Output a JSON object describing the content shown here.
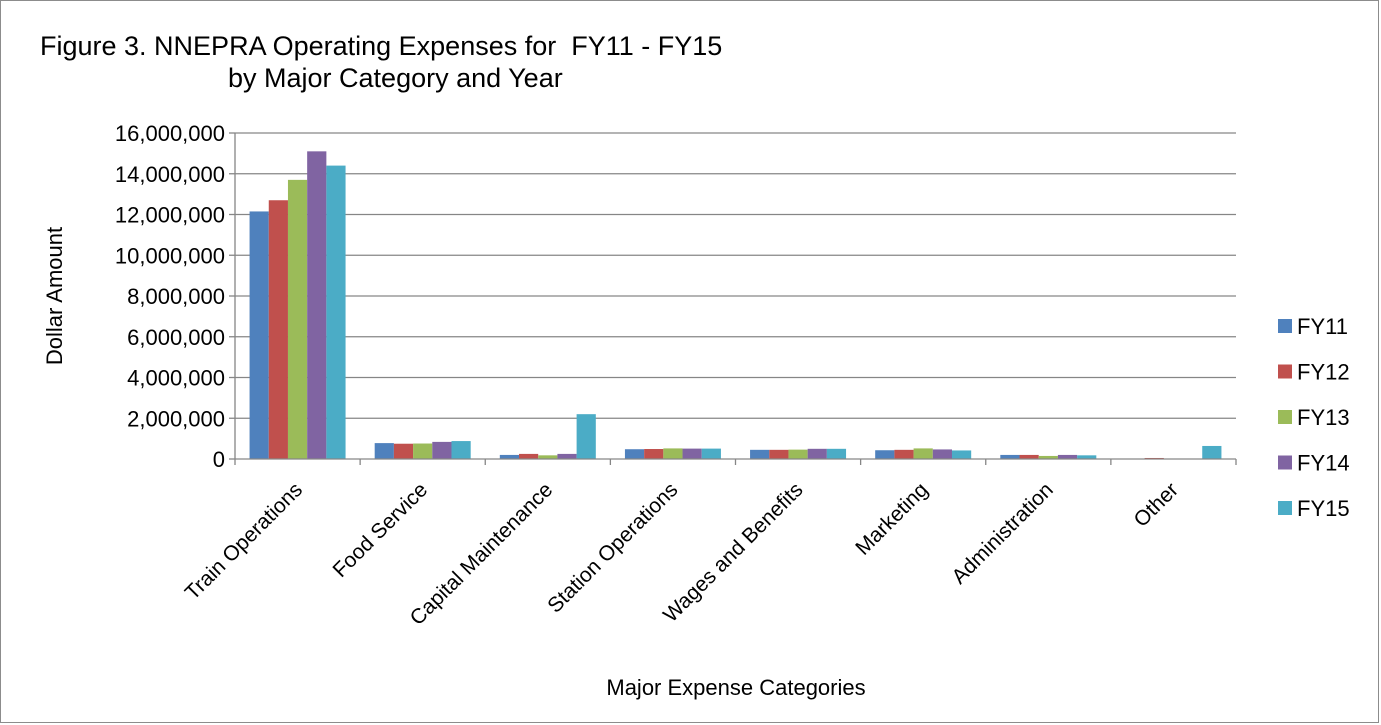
{
  "chart_data": {
    "type": "bar",
    "title_line1": "Figure 3. NNEPRA Operating Expenses for  FY11 - FY15",
    "title_line2": "by Major Category and Year",
    "xlabel": "Major Expense Categories",
    "ylabel": "Dollar Amount",
    "ylim": [
      0,
      16000000
    ],
    "yticks": [
      0,
      2000000,
      4000000,
      6000000,
      8000000,
      10000000,
      12000000,
      14000000,
      16000000
    ],
    "ytick_labels": [
      "0",
      "2,000,000",
      "4,000,000",
      "6,000,000",
      "8,000,000",
      "10,000,000",
      "12,000,000",
      "14,000,000",
      "16,000,000"
    ],
    "grid": true,
    "legend_position": "right",
    "categories": [
      "Train Operations",
      "Food Service",
      "Capital Maintenance",
      "Station Operations",
      "Wages and Benefits",
      "Marketing",
      "Administration",
      "Other"
    ],
    "series": [
      {
        "name": "FY11",
        "color": "#4f81bd",
        "values": [
          12150000,
          780000,
          200000,
          480000,
          450000,
          430000,
          200000,
          0
        ]
      },
      {
        "name": "FY12",
        "color": "#c0504d",
        "values": [
          12700000,
          750000,
          250000,
          490000,
          450000,
          450000,
          200000,
          50000
        ]
      },
      {
        "name": "FY13",
        "color": "#9bbb59",
        "values": [
          13700000,
          760000,
          180000,
          520000,
          460000,
          520000,
          150000,
          0
        ]
      },
      {
        "name": "FY14",
        "color": "#8064a2",
        "values": [
          15100000,
          840000,
          250000,
          510000,
          500000,
          470000,
          200000,
          0
        ]
      },
      {
        "name": "FY15",
        "color": "#4bacc6",
        "values": [
          14400000,
          880000,
          2200000,
          510000,
          500000,
          420000,
          180000,
          640000
        ]
      }
    ]
  }
}
